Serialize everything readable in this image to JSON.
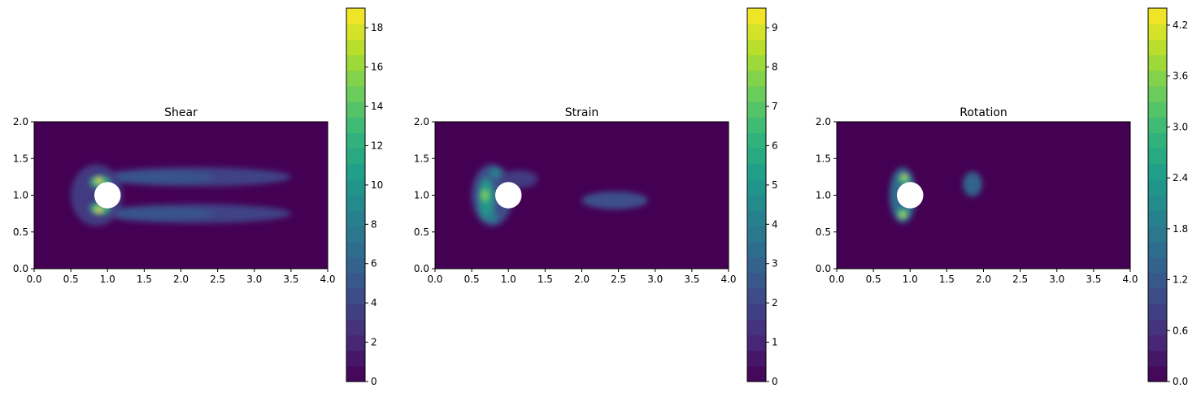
{
  "chart_data": [
    {
      "type": "heatmap",
      "title": "Shear",
      "xlabel": "",
      "ylabel": "",
      "xlim": [
        0.0,
        4.0
      ],
      "ylim": [
        0.0,
        2.0
      ],
      "xticks": [
        "0.0",
        "0.5",
        "1.0",
        "1.5",
        "2.0",
        "2.5",
        "3.0",
        "3.5",
        "4.0"
      ],
      "yticks": [
        "0.0",
        "0.5",
        "1.0",
        "1.5",
        "2.0"
      ],
      "colorbar": {
        "min": 0,
        "max": 19,
        "ticks": [
          "0",
          "2",
          "4",
          "6",
          "8",
          "10",
          "12",
          "14",
          "16",
          "18"
        ]
      },
      "colormap": "viridis",
      "obstacle": {
        "shape": "circle",
        "cx": 1.0,
        "cy": 1.0,
        "r": 0.18
      },
      "blobs": [
        {
          "x": 2.2,
          "y": 1.25,
          "rx": 1.3,
          "ry": 0.13,
          "value": 3.8
        },
        {
          "x": 2.2,
          "y": 0.75,
          "rx": 1.3,
          "ry": 0.13,
          "value": 3.8
        },
        {
          "x": 1.7,
          "y": 1.25,
          "rx": 0.75,
          "ry": 0.08,
          "value": 5.0
        },
        {
          "x": 1.7,
          "y": 0.75,
          "rx": 0.75,
          "ry": 0.08,
          "value": 5.0
        },
        {
          "x": 0.85,
          "y": 1.0,
          "rx": 0.35,
          "ry": 0.42,
          "value": 3.2
        },
        {
          "x": 0.9,
          "y": 1.18,
          "rx": 0.13,
          "ry": 0.07,
          "value": 12.0
        },
        {
          "x": 0.9,
          "y": 0.82,
          "rx": 0.13,
          "ry": 0.07,
          "value": 12.0
        },
        {
          "x": 0.88,
          "y": 1.2,
          "rx": 0.05,
          "ry": 0.03,
          "value": 18.5
        },
        {
          "x": 0.88,
          "y": 0.8,
          "rx": 0.05,
          "ry": 0.03,
          "value": 18.5
        }
      ]
    },
    {
      "type": "heatmap",
      "title": "Strain",
      "xlabel": "",
      "ylabel": "",
      "xlim": [
        0.0,
        4.0
      ],
      "ylim": [
        0.0,
        2.0
      ],
      "xticks": [
        "0.0",
        "0.5",
        "1.0",
        "1.5",
        "2.0",
        "2.5",
        "3.0",
        "3.5",
        "4.0"
      ],
      "yticks": [
        "0.0",
        "0.5",
        "1.0",
        "1.5",
        "2.0"
      ],
      "colorbar": {
        "min": 0,
        "max": 9.5,
        "ticks": [
          "0",
          "1",
          "2",
          "3",
          "4",
          "5",
          "6",
          "7",
          "8",
          "9"
        ]
      },
      "colormap": "viridis",
      "obstacle": {
        "shape": "circle",
        "cx": 1.0,
        "cy": 1.0,
        "r": 0.18
      },
      "blobs": [
        {
          "x": 0.78,
          "y": 1.0,
          "rx": 0.28,
          "ry": 0.42,
          "value": 2.2
        },
        {
          "x": 1.15,
          "y": 1.22,
          "rx": 0.25,
          "ry": 0.12,
          "value": 1.6
        },
        {
          "x": 0.7,
          "y": 0.95,
          "rx": 0.1,
          "ry": 0.28,
          "value": 5.0
        },
        {
          "x": 0.68,
          "y": 1.0,
          "rx": 0.05,
          "ry": 0.08,
          "value": 7.5
        },
        {
          "x": 0.82,
          "y": 1.3,
          "rx": 0.07,
          "ry": 0.07,
          "value": 4.2
        },
        {
          "x": 0.78,
          "y": 0.7,
          "rx": 0.07,
          "ry": 0.07,
          "value": 4.0
        },
        {
          "x": 2.45,
          "y": 0.93,
          "rx": 0.45,
          "ry": 0.12,
          "value": 2.3
        }
      ]
    },
    {
      "type": "heatmap",
      "title": "Rotation",
      "xlabel": "",
      "ylabel": "",
      "xlim": [
        0.0,
        4.0
      ],
      "ylim": [
        0.0,
        2.0
      ],
      "xticks": [
        "0.0",
        "0.5",
        "1.0",
        "1.5",
        "2.0",
        "2.5",
        "3.0",
        "3.5",
        "4.0"
      ],
      "yticks": [
        "0.0",
        "0.5",
        "1.0",
        "1.5",
        "2.0"
      ],
      "colorbar": {
        "min": 0.0,
        "max": 4.4,
        "ticks": [
          "0.0",
          "0.6",
          "1.2",
          "1.8",
          "2.4",
          "3.0",
          "3.6",
          "4.2"
        ]
      },
      "colormap": "viridis",
      "obstacle": {
        "shape": "circle",
        "cx": 1.0,
        "cy": 1.0,
        "r": 0.18
      },
      "blobs": [
        {
          "x": 0.9,
          "y": 1.0,
          "rx": 0.18,
          "ry": 0.38,
          "value": 1.5
        },
        {
          "x": 0.92,
          "y": 1.22,
          "rx": 0.07,
          "ry": 0.06,
          "value": 3.0
        },
        {
          "x": 0.9,
          "y": 0.75,
          "rx": 0.07,
          "ry": 0.06,
          "value": 3.0
        },
        {
          "x": 0.92,
          "y": 1.25,
          "rx": 0.03,
          "ry": 0.025,
          "value": 4.3
        },
        {
          "x": 0.9,
          "y": 0.73,
          "rx": 0.03,
          "ry": 0.025,
          "value": 4.3
        },
        {
          "x": 1.85,
          "y": 1.15,
          "rx": 0.13,
          "ry": 0.17,
          "value": 1.4
        }
      ]
    }
  ]
}
